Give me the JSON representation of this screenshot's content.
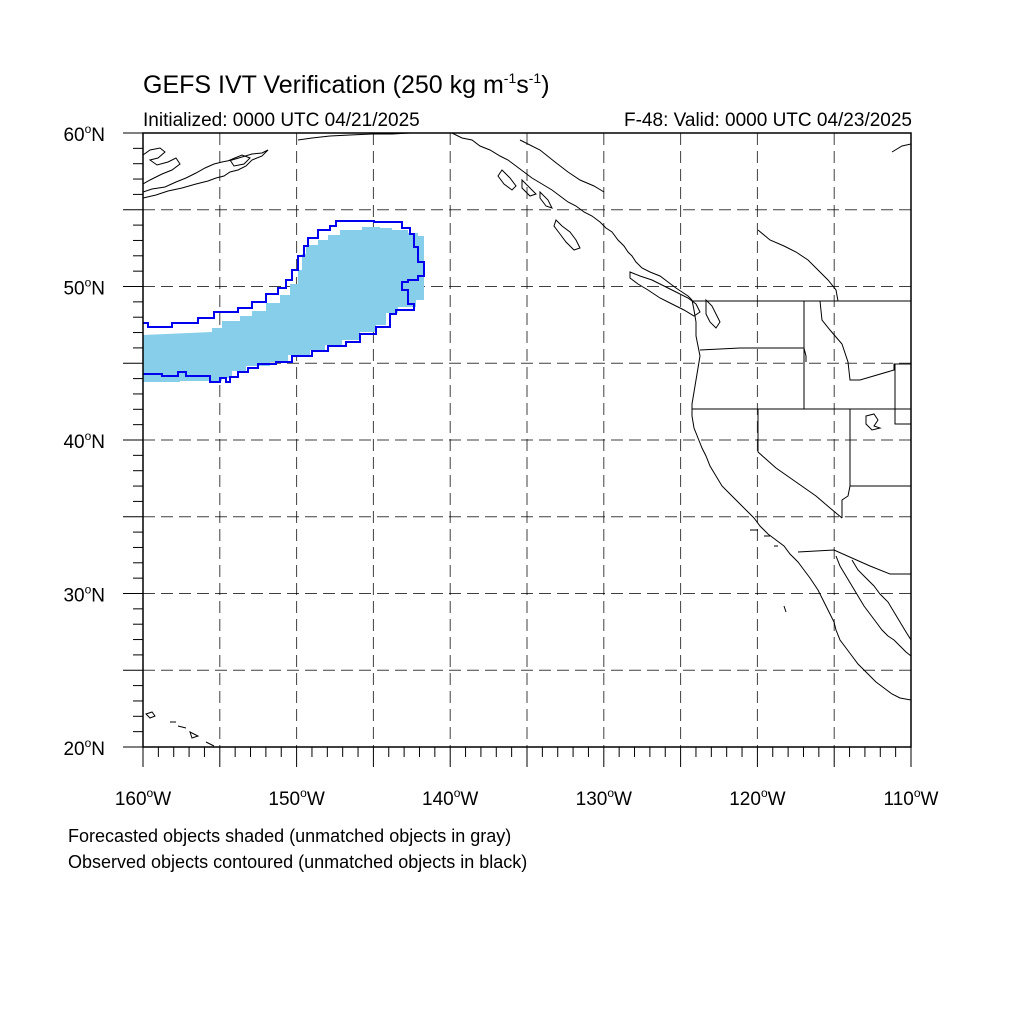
{
  "title": {
    "main": "GEFS IVT Verification (250 kg m",
    "exp1": "-1",
    "mid": "s",
    "exp2": "-1",
    "close": ")"
  },
  "subtitle": {
    "left": "Initialized: 0000 UTC 04/21/2025",
    "right": "F-48: Valid: 0000 UTC 04/23/2025"
  },
  "map": {
    "lon_range": [
      -160,
      -110
    ],
    "lat_range": [
      20,
      60
    ],
    "lat_labels": [
      {
        "lat": 60,
        "num": "60",
        "hem": "N"
      },
      {
        "lat": 50,
        "num": "50",
        "hem": "N"
      },
      {
        "lat": 40,
        "num": "40",
        "hem": "N"
      },
      {
        "lat": 30,
        "num": "30",
        "hem": "N"
      },
      {
        "lat": 20,
        "num": "20",
        "hem": "N"
      }
    ],
    "lon_labels": [
      {
        "lon": -160,
        "num": "160",
        "hem": "W"
      },
      {
        "lon": -150,
        "num": "150",
        "hem": "W"
      },
      {
        "lon": -140,
        "num": "140",
        "hem": "W"
      },
      {
        "lon": -130,
        "num": "130",
        "hem": "W"
      },
      {
        "lon": -120,
        "num": "120",
        "hem": "W"
      },
      {
        "lon": -110,
        "num": "110",
        "hem": "W"
      }
    ],
    "grid_style": "dashed",
    "colors": {
      "forecast_fill": "#87ceeb",
      "observed_contour": "#0000ee",
      "coastline": "#000000"
    }
  },
  "footnotes": {
    "line1": "Forecasted objects shaded (unmatched objects in gray)",
    "line2": "Observed objects contoured (unmatched objects in black)"
  }
}
